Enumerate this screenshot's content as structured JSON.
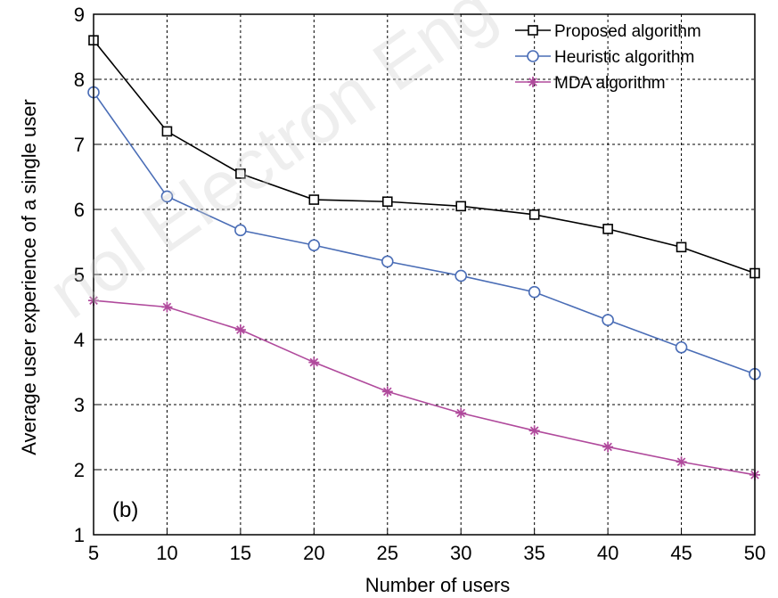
{
  "chart_data": {
    "type": "line",
    "panel_label": "(b)",
    "watermark": "nol Electron Eng",
    "xlabel": "Number of users",
    "ylabel": "Average user experience of a single user",
    "x": [
      5,
      10,
      15,
      20,
      25,
      30,
      35,
      40,
      45,
      50
    ],
    "xlim": [
      5,
      50
    ],
    "ylim": [
      1,
      9
    ],
    "xticks": [
      5,
      10,
      15,
      20,
      25,
      30,
      35,
      40,
      45,
      50
    ],
    "yticks": [
      1,
      2,
      3,
      4,
      5,
      6,
      7,
      8,
      9
    ],
    "grid": true,
    "legend_position": "top-right",
    "series": [
      {
        "name": "Proposed algorithm",
        "color": "#000000",
        "marker": "square",
        "values": [
          8.6,
          7.2,
          6.55,
          6.15,
          6.12,
          6.05,
          5.92,
          5.7,
          5.42,
          5.02
        ]
      },
      {
        "name": "Heuristic algorithm",
        "color": "#4a6db6",
        "marker": "circle",
        "values": [
          7.8,
          6.2,
          5.68,
          5.45,
          5.2,
          4.98,
          4.73,
          4.3,
          3.88,
          3.47
        ]
      },
      {
        "name": "MDA algorithm",
        "color": "#b04a9c",
        "marker": "star",
        "values": [
          4.6,
          4.5,
          4.15,
          3.65,
          3.2,
          2.87,
          2.6,
          2.35,
          2.12,
          1.92
        ]
      }
    ]
  }
}
